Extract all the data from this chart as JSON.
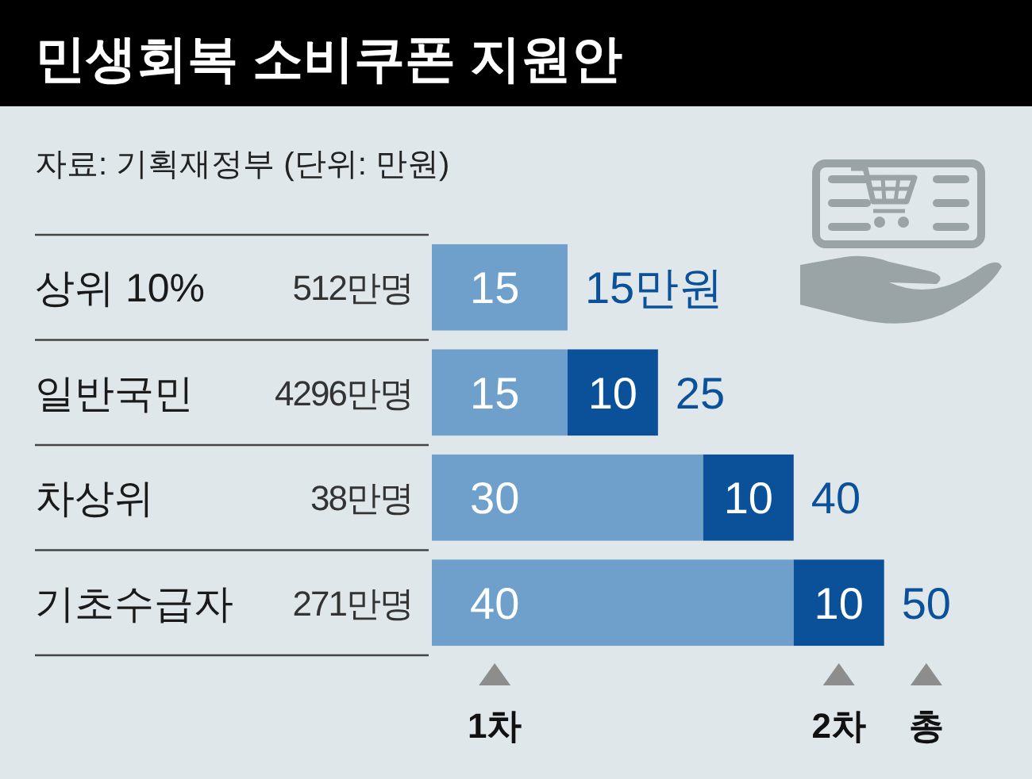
{
  "chart_data": {
    "type": "bar",
    "orientation": "horizontal",
    "stacked": true,
    "data_labels": true,
    "title": "민생회복 소비쿠폰 지원안",
    "subtitle": "자료: 기획재정부 (단위: 만원)",
    "categories": [
      "상위 10%",
      "일반국민",
      "차상위",
      "기초수급자"
    ],
    "y2_categories": [
      "512만명",
      "4296만명",
      "38만명",
      "271만명"
    ],
    "series": [
      {
        "name": "1차",
        "color": "#6fa0cb",
        "values": [
          15,
          15,
          30,
          40
        ]
      },
      {
        "name": "2차",
        "color": "#0b519a",
        "values": [
          null,
          10,
          10,
          10
        ]
      }
    ],
    "totals": [
      "15만원",
      "25",
      "40",
      "50"
    ],
    "annotations": [
      "총"
    ]
  }
}
